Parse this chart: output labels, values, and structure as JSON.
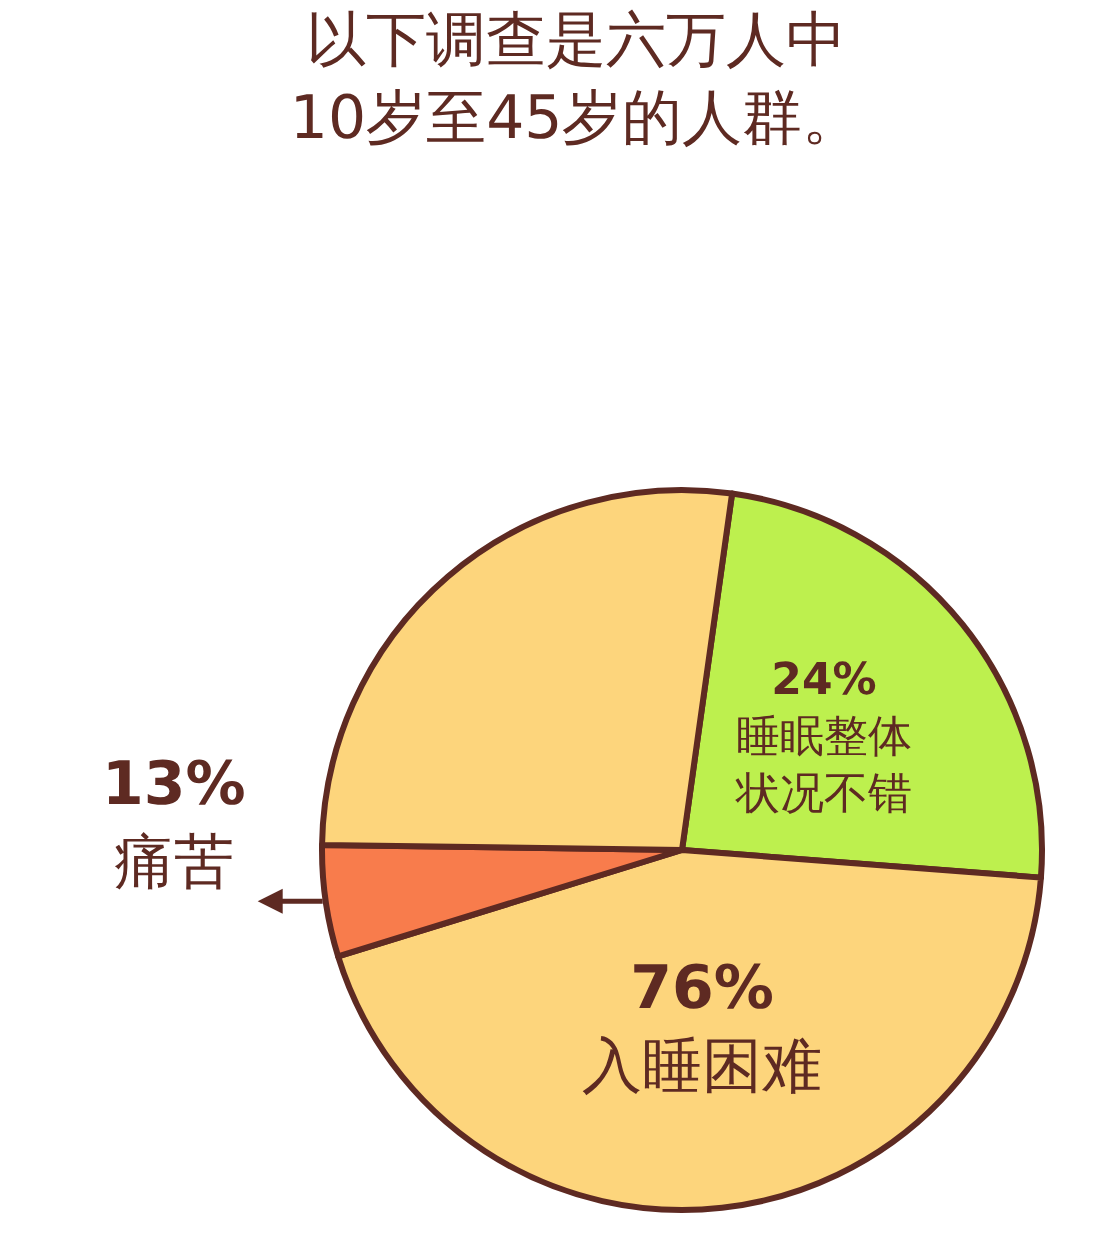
{
  "chart_data": {
    "type": "pie",
    "title": "以下调查是六万人中\n10岁至45岁的人群。",
    "categories": [
      "睡眠整体状况不错",
      "入睡困难",
      "痛苦",
      null
    ],
    "values": [
      24,
      44,
      5,
      27
    ],
    "annotations": [
      "24%",
      "76%",
      "13%"
    ],
    "colors": [
      "#bdf04e",
      "#fdd57c",
      "#f87c4c",
      "#fdd57c"
    ]
  }
}
